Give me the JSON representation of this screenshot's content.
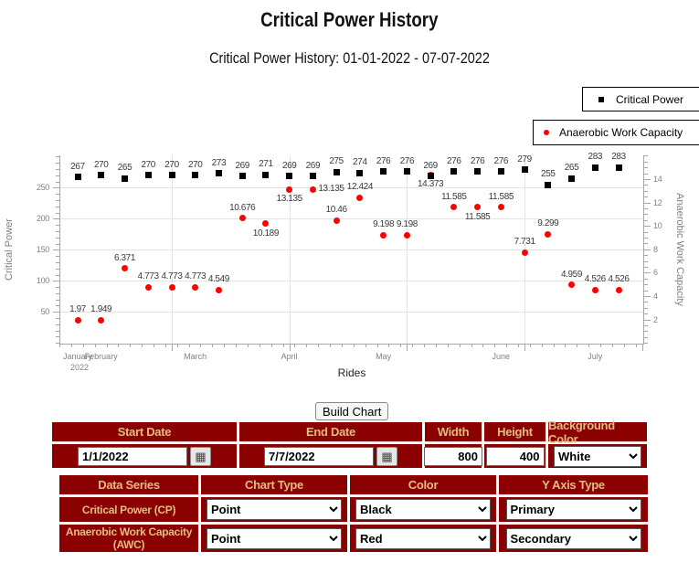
{
  "page": {
    "title": "Critical Power History"
  },
  "legend": [
    {
      "label": "Critical Power",
      "marker": "square",
      "color": "#000000"
    },
    {
      "label": "Anaerobic Work Capacity",
      "marker": "circle",
      "color": "#FF0000"
    }
  ],
  "chart_data": {
    "type": "scatter",
    "title": "Critical Power History: 01-01-2022 - 07-07-2022",
    "xlabel": "Rides",
    "x_year_label": "2022",
    "axes": {
      "left": {
        "label": "Critical Power",
        "ticks": [
          50,
          100,
          150,
          200,
          250
        ]
      },
      "right": {
        "label": "Anaerobic Work Capacity",
        "ticks": [
          2,
          4,
          6,
          8,
          10,
          12,
          14
        ]
      }
    },
    "months": [
      {
        "label": "January",
        "ride": 0
      },
      {
        "label": "February",
        "ride": 1
      },
      {
        "label": "March",
        "ride": 5
      },
      {
        "label": "April",
        "ride": 9
      },
      {
        "label": "May",
        "ride": 13
      },
      {
        "label": "June",
        "ride": 18
      },
      {
        "label": "July",
        "ride": 22
      }
    ],
    "series": [
      {
        "name": "Critical Power",
        "marker": "square",
        "color": "#000000",
        "axis": "left",
        "values": [
          267,
          270,
          265,
          270,
          270,
          270,
          273,
          269,
          271,
          269,
          269,
          275,
          274,
          276,
          276,
          269,
          276,
          276,
          276,
          279,
          255,
          265,
          283,
          283
        ],
        "label_placement": [
          "above",
          "above",
          "above",
          "above",
          "above",
          "above",
          "above",
          "above",
          "above",
          "above",
          "above",
          "above",
          "above",
          "above",
          "above",
          "above",
          "above",
          "above",
          "above",
          "above",
          "above",
          "above",
          "above",
          "above"
        ]
      },
      {
        "name": "Anaerobic Work Capacity",
        "marker": "circle",
        "color": "#FF0000",
        "axis": "right",
        "values": [
          1.97,
          1.949,
          6.371,
          4.773,
          4.773,
          4.773,
          4.549,
          10.676,
          10.189,
          13.135,
          13.135,
          10.46,
          12.424,
          9.198,
          9.198,
          14.373,
          11.585,
          11.585,
          11.585,
          7.731,
          9.299,
          4.959,
          4.526,
          4.526
        ],
        "label_placement": [
          "above",
          "above",
          "above",
          "above",
          "above",
          "above",
          "above",
          "above",
          "below",
          "below",
          "right",
          "above",
          "above",
          "above",
          "above",
          "below",
          "above",
          "below",
          "above",
          "above",
          "above",
          "above",
          "above",
          "above"
        ]
      }
    ]
  },
  "form": {
    "build_button": "Build Chart",
    "table1": {
      "headers": {
        "start_date": "Start Date",
        "end_date": "End Date",
        "width": "Width",
        "height": "Height",
        "background_color": "Background Color"
      },
      "start_date": "1/1/2022",
      "end_date": "7/7/2022",
      "width": "800",
      "height": "400",
      "background_color": "White",
      "calendar_icon": "▦"
    },
    "table2": {
      "headers": {
        "data_series": "Data Series",
        "chart_type": "Chart Type",
        "color": "Color",
        "y_axis_type": "Y Axis Type"
      },
      "rows": [
        {
          "label": "Critical Power (CP)",
          "chart_type": "Point",
          "color": "Black",
          "y_axis": "Primary"
        },
        {
          "label": "Anaerobic Work Capacity (AWC)",
          "chart_type": "Point",
          "color": "Red",
          "y_axis": "Secondary"
        }
      ]
    }
  },
  "colors": {
    "maroon": "#8B0000",
    "table_header_text": "#E2BD80",
    "cp_series": "#000000",
    "awc_series": "#FF0000"
  }
}
